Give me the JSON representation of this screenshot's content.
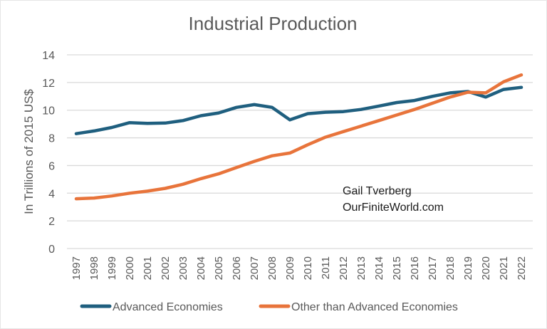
{
  "chart_data": {
    "type": "line",
    "title": "Industrial Production",
    "xlabel": "",
    "ylabel": "In Trillions of 2015 US$",
    "ylim": [
      0,
      14
    ],
    "yticks": [
      "0",
      "2",
      "4",
      "6",
      "8",
      "10",
      "12",
      "14"
    ],
    "grid": true,
    "legend_position": "bottom",
    "x": [
      "1997",
      "1998",
      "1999",
      "2000",
      "2001",
      "2002",
      "2003",
      "2004",
      "2005",
      "2006",
      "2007",
      "2008",
      "2009",
      "2010",
      "2011",
      "2012",
      "2013",
      "2014",
      "2015",
      "2016",
      "2017",
      "2018",
      "2019",
      "2020",
      "2021",
      "2022"
    ],
    "series": [
      {
        "name": "Advanced Economies",
        "color": "#1f5f7f",
        "values": [
          8.3,
          8.5,
          8.75,
          9.1,
          9.05,
          9.07,
          9.25,
          9.6,
          9.8,
          10.2,
          10.4,
          10.2,
          9.3,
          9.75,
          9.85,
          9.9,
          10.05,
          10.3,
          10.55,
          10.7,
          11.0,
          11.25,
          11.35,
          10.95,
          11.5,
          11.65
        ]
      },
      {
        "name": "Other than Advanced Economies",
        "color": "#e8743b",
        "values": [
          3.6,
          3.65,
          3.8,
          4.0,
          4.15,
          4.35,
          4.65,
          5.05,
          5.4,
          5.85,
          6.3,
          6.7,
          6.9,
          7.5,
          8.05,
          8.45,
          8.85,
          9.25,
          9.65,
          10.05,
          10.5,
          10.95,
          11.3,
          11.25,
          12.05,
          12.55
        ]
      }
    ],
    "annotations": [
      "Gail Tverberg",
      "OurFiniteWorld.com"
    ]
  }
}
